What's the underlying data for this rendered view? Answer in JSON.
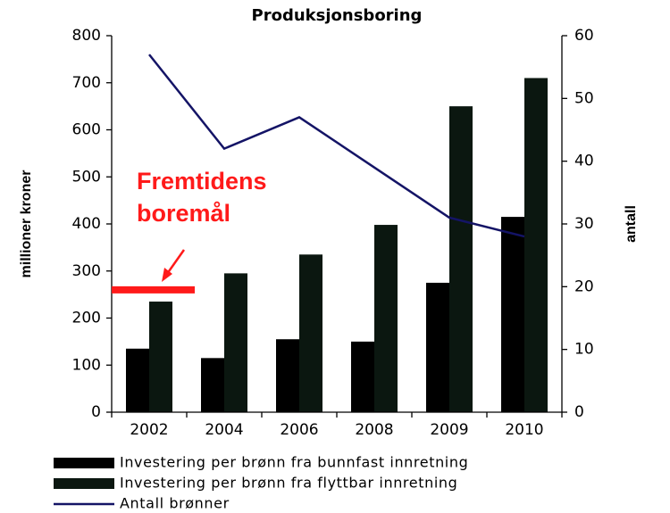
{
  "chart_data": {
    "type": "bar",
    "title": "Produksjonsboring",
    "y_label": "millioner kroner",
    "y2_label": "antall",
    "categories": [
      "2002",
      "2004",
      "2006",
      "2008",
      "2009",
      "2010"
    ],
    "series": [
      {
        "name": "Investering per brønn fra bunnfast innretning",
        "color": "#000000",
        "values": [
          135,
          115,
          155,
          150,
          275,
          415
        ]
      },
      {
        "name": "Investering per brønn fra flyttbar innretning",
        "color": "#0b1710",
        "values": [
          235,
          295,
          335,
          398,
          650,
          710
        ]
      },
      {
        "name": "Antall brønner",
        "color": "#141466",
        "type": "line",
        "axis": "y2",
        "values": [
          57,
          42,
          47,
          39,
          31,
          28
        ]
      }
    ],
    "ylim": [
      0,
      800
    ],
    "yticks": [
      0,
      100,
      200,
      300,
      400,
      500,
      600,
      700,
      800
    ],
    "y2lim": [
      0,
      60
    ],
    "y2ticks": [
      0,
      10,
      20,
      30,
      40,
      50,
      60
    ],
    "annotation": {
      "lines": [
        "Fremtidens",
        "boremål"
      ],
      "value": 260,
      "color": "#ff1a1a"
    }
  }
}
